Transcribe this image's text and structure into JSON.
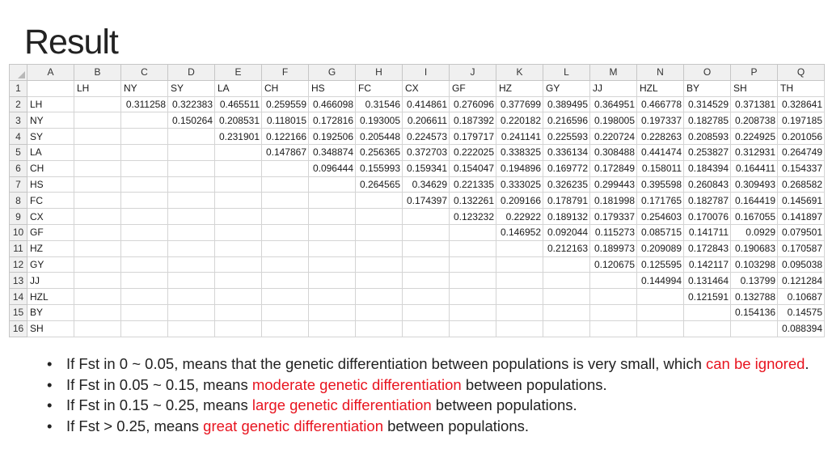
{
  "title": "Result",
  "sheet": {
    "columns": [
      "A",
      "B",
      "C",
      "D",
      "E",
      "F",
      "G",
      "H",
      "I",
      "J",
      "K",
      "L",
      "M",
      "N",
      "O",
      "P",
      "Q"
    ],
    "rows": [
      [
        "",
        "LH",
        "NY",
        "SY",
        "LA",
        "CH",
        "HS",
        "FC",
        "CX",
        "GF",
        "HZ",
        "GY",
        "JJ",
        "HZL",
        "BY",
        "SH",
        "TH"
      ],
      [
        "LH",
        "",
        "0.311258",
        "0.322383",
        "0.465511",
        "0.259559",
        "0.466098",
        "0.31546",
        "0.414861",
        "0.276096",
        "0.377699",
        "0.389495",
        "0.364951",
        "0.466778",
        "0.314529",
        "0.371381",
        "0.328641"
      ],
      [
        "NY",
        "",
        "",
        "0.150264",
        "0.208531",
        "0.118015",
        "0.172816",
        "0.193005",
        "0.206611",
        "0.187392",
        "0.220182",
        "0.216596",
        "0.198005",
        "0.197337",
        "0.182785",
        "0.208738",
        "0.197185"
      ],
      [
        "SY",
        "",
        "",
        "",
        "0.231901",
        "0.122166",
        "0.192506",
        "0.205448",
        "0.224573",
        "0.179717",
        "0.241141",
        "0.225593",
        "0.220724",
        "0.228263",
        "0.208593",
        "0.224925",
        "0.201056"
      ],
      [
        "LA",
        "",
        "",
        "",
        "",
        "0.147867",
        "0.348874",
        "0.256365",
        "0.372703",
        "0.222025",
        "0.338325",
        "0.336134",
        "0.308488",
        "0.441474",
        "0.253827",
        "0.312931",
        "0.264749"
      ],
      [
        "CH",
        "",
        "",
        "",
        "",
        "",
        "0.096444",
        "0.155993",
        "0.159341",
        "0.154047",
        "0.194896",
        "0.169772",
        "0.172849",
        "0.158011",
        "0.184394",
        "0.164411",
        "0.154337"
      ],
      [
        "HS",
        "",
        "",
        "",
        "",
        "",
        "",
        "0.264565",
        "0.34629",
        "0.221335",
        "0.333025",
        "0.326235",
        "0.299443",
        "0.395598",
        "0.260843",
        "0.309493",
        "0.268582"
      ],
      [
        "FC",
        "",
        "",
        "",
        "",
        "",
        "",
        "",
        "0.174397",
        "0.132261",
        "0.209166",
        "0.178791",
        "0.181998",
        "0.171765",
        "0.182787",
        "0.164419",
        "0.145691"
      ],
      [
        "CX",
        "",
        "",
        "",
        "",
        "",
        "",
        "",
        "",
        "0.123232",
        "0.22922",
        "0.189132",
        "0.179337",
        "0.254603",
        "0.170076",
        "0.167055",
        "0.141897"
      ],
      [
        "GF",
        "",
        "",
        "",
        "",
        "",
        "",
        "",
        "",
        "",
        "0.146952",
        "0.092044",
        "0.115273",
        "0.085715",
        "0.141711",
        "0.0929",
        "0.079501"
      ],
      [
        "HZ",
        "",
        "",
        "",
        "",
        "",
        "",
        "",
        "",
        "",
        "",
        "0.212163",
        "0.189973",
        "0.209089",
        "0.172843",
        "0.190683",
        "0.170587"
      ],
      [
        "GY",
        "",
        "",
        "",
        "",
        "",
        "",
        "",
        "",
        "",
        "",
        "",
        "0.120675",
        "0.125595",
        "0.142117",
        "0.103298",
        "0.095038"
      ],
      [
        "JJ",
        "",
        "",
        "",
        "",
        "",
        "",
        "",
        "",
        "",
        "",
        "",
        "",
        "0.144994",
        "0.131464",
        "0.13799",
        "0.121284"
      ],
      [
        "HZL",
        "",
        "",
        "",
        "",
        "",
        "",
        "",
        "",
        "",
        "",
        "",
        "",
        "",
        "0.121591",
        "0.132788",
        "0.10687"
      ],
      [
        "BY",
        "",
        "",
        "",
        "",
        "",
        "",
        "",
        "",
        "",
        "",
        "",
        "",
        "",
        "",
        "0.154136",
        "0.14575"
      ],
      [
        "SH",
        "",
        "",
        "",
        "",
        "",
        "",
        "",
        "",
        "",
        "",
        "",
        "",
        "",
        "",
        "",
        "0.088394"
      ]
    ]
  },
  "bullets": [
    {
      "pre": "If Fst in ",
      "range": "0 ~ 0.05",
      "mid": ", means that the genetic differentiation between populations is very small, which ",
      "em": "can be ignored",
      "post": "."
    },
    {
      "pre": "If Fst in ",
      "range": "0.05 ~ 0.15",
      "mid": ", means ",
      "em": "moderate genetic differentiation",
      "post": " between populations."
    },
    {
      "pre": "If Fst in ",
      "range": "0.15 ~ 0.25",
      "mid": ", means ",
      "em": "large genetic differentiation",
      "post": " between populations."
    },
    {
      "pre": "If Fst ",
      "range": "> 0.25",
      "mid": ", means ",
      "em": "great genetic differentiation",
      "post": " between populations."
    }
  ],
  "colors": {
    "accent_red": "#e8141f",
    "header_bg": "#f0f0f0",
    "grid": "#d4d4d4"
  }
}
